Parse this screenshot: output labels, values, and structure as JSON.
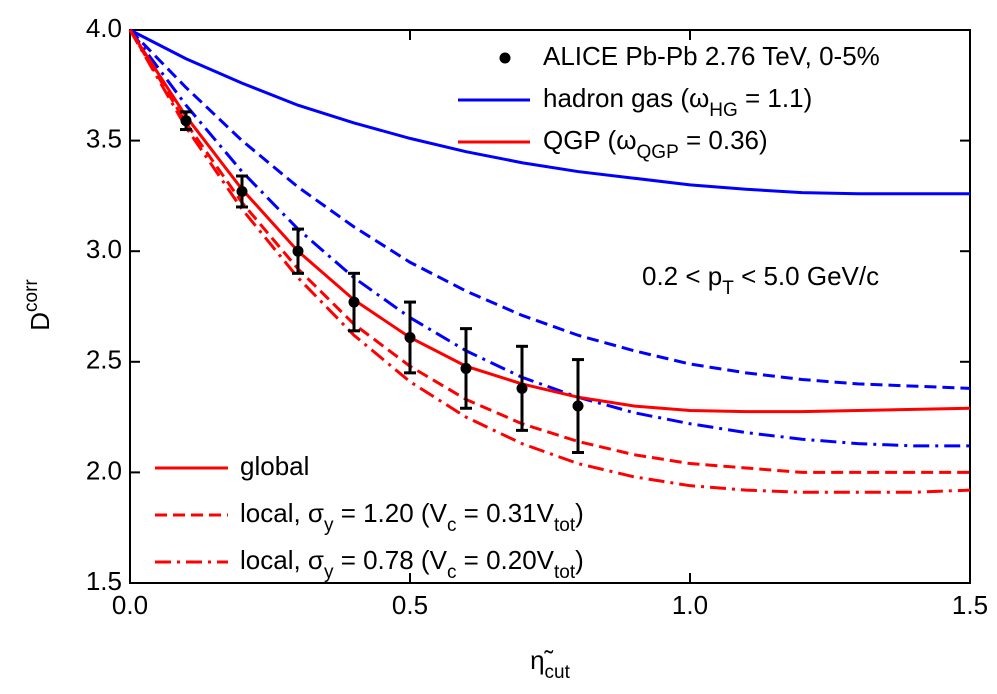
{
  "chart_data": {
    "type": "line",
    "x_label": [
      "η̃",
      "cut"
    ],
    "y_label": [
      "D",
      "corr"
    ],
    "annotation": [
      "0.2 < p",
      "T",
      " < 5.0 GeV/c"
    ],
    "xlim": [
      0,
      1.5
    ],
    "ylim": [
      1.5,
      4.0
    ],
    "xticks": [
      {
        "value": 0,
        "label": "0.0"
      },
      0.5,
      {
        "value": 1,
        "label": "1.0"
      },
      1.5
    ],
    "yticks": [
      1.5,
      {
        "value": 2,
        "label": "2.0"
      },
      2.5,
      {
        "value": 3,
        "label": "3.0"
      },
      3.5,
      {
        "value": 4,
        "label": "4.0"
      }
    ],
    "x": [
      0,
      0.1,
      0.2,
      0.3,
      0.4,
      0.5,
      0.6,
      0.7,
      0.8,
      0.9,
      1.0,
      1.1,
      1.2,
      1.3,
      1.4,
      1.5
    ],
    "models": [
      {
        "name": [
          "hadron gas (ω",
          "HG",
          " = 1.1)"
        ],
        "color": "#0000ff",
        "curves": [
          {
            "values": [
              4.0,
              3.87,
              3.76,
              3.66,
              3.58,
              3.51,
              3.45,
              3.4,
              3.36,
              3.33,
              3.3,
              3.28,
              3.265,
              3.26,
              3.26,
              3.26
            ]
          },
          {
            "values": [
              4.0,
              3.74,
              3.5,
              3.29,
              3.11,
              2.95,
              2.82,
              2.71,
              2.62,
              2.55,
              2.49,
              2.45,
              2.42,
              2.4,
              2.39,
              2.38
            ]
          },
          {
            "values": [
              4.0,
              3.66,
              3.36,
              3.1,
              2.88,
              2.7,
              2.55,
              2.43,
              2.34,
              2.27,
              2.22,
              2.18,
              2.15,
              2.13,
              2.12,
              2.12
            ]
          }
        ]
      },
      {
        "name": [
          "QGP (ω",
          "QGP",
          " = 0.36)"
        ],
        "color": "#ff0000",
        "curves": [
          {
            "values": [
              4.0,
              3.61,
              3.28,
              3.0,
              2.78,
              2.61,
              2.48,
              2.4,
              2.34,
              2.3,
              2.28,
              2.275,
              2.275,
              2.28,
              2.285,
              2.29
            ]
          },
          {
            "values": [
              4.0,
              3.58,
              3.22,
              2.92,
              2.67,
              2.48,
              2.33,
              2.22,
              2.14,
              2.08,
              2.04,
              2.02,
              2.0,
              2.0,
              2.0,
              2.0
            ]
          },
          {
            "values": [
              4.0,
              3.56,
              3.19,
              2.88,
              2.62,
              2.41,
              2.25,
              2.13,
              2.04,
              1.98,
              1.94,
              1.92,
              1.91,
              1.91,
              1.91,
              1.92
            ]
          }
        ]
      }
    ],
    "styles": [
      {
        "name": [
          "global"
        ],
        "dash": "solid"
      },
      {
        "name": [
          "local, σ",
          "y",
          " = 1.20 (V",
          "c",
          " = 0.31V",
          "tot",
          ")"
        ],
        "dash": "dashed"
      },
      {
        "name": [
          "local, σ",
          "y",
          " = 0.78 (V",
          "c",
          " = 0.20V",
          "tot",
          ")"
        ],
        "dash": "dashdot"
      }
    ],
    "data": {
      "name": [
        "ALICE Pb-Pb 2.76 TeV, 0-5%"
      ],
      "color": "#000000",
      "x": [
        0.1,
        0.2,
        0.3,
        0.4,
        0.5,
        0.6,
        0.7,
        0.8
      ],
      "values": [
        3.59,
        3.27,
        3.0,
        2.77,
        2.61,
        2.47,
        2.38,
        2.3
      ],
      "errors": [
        0.04,
        0.07,
        0.1,
        0.13,
        0.16,
        0.18,
        0.19,
        0.21
      ]
    }
  }
}
